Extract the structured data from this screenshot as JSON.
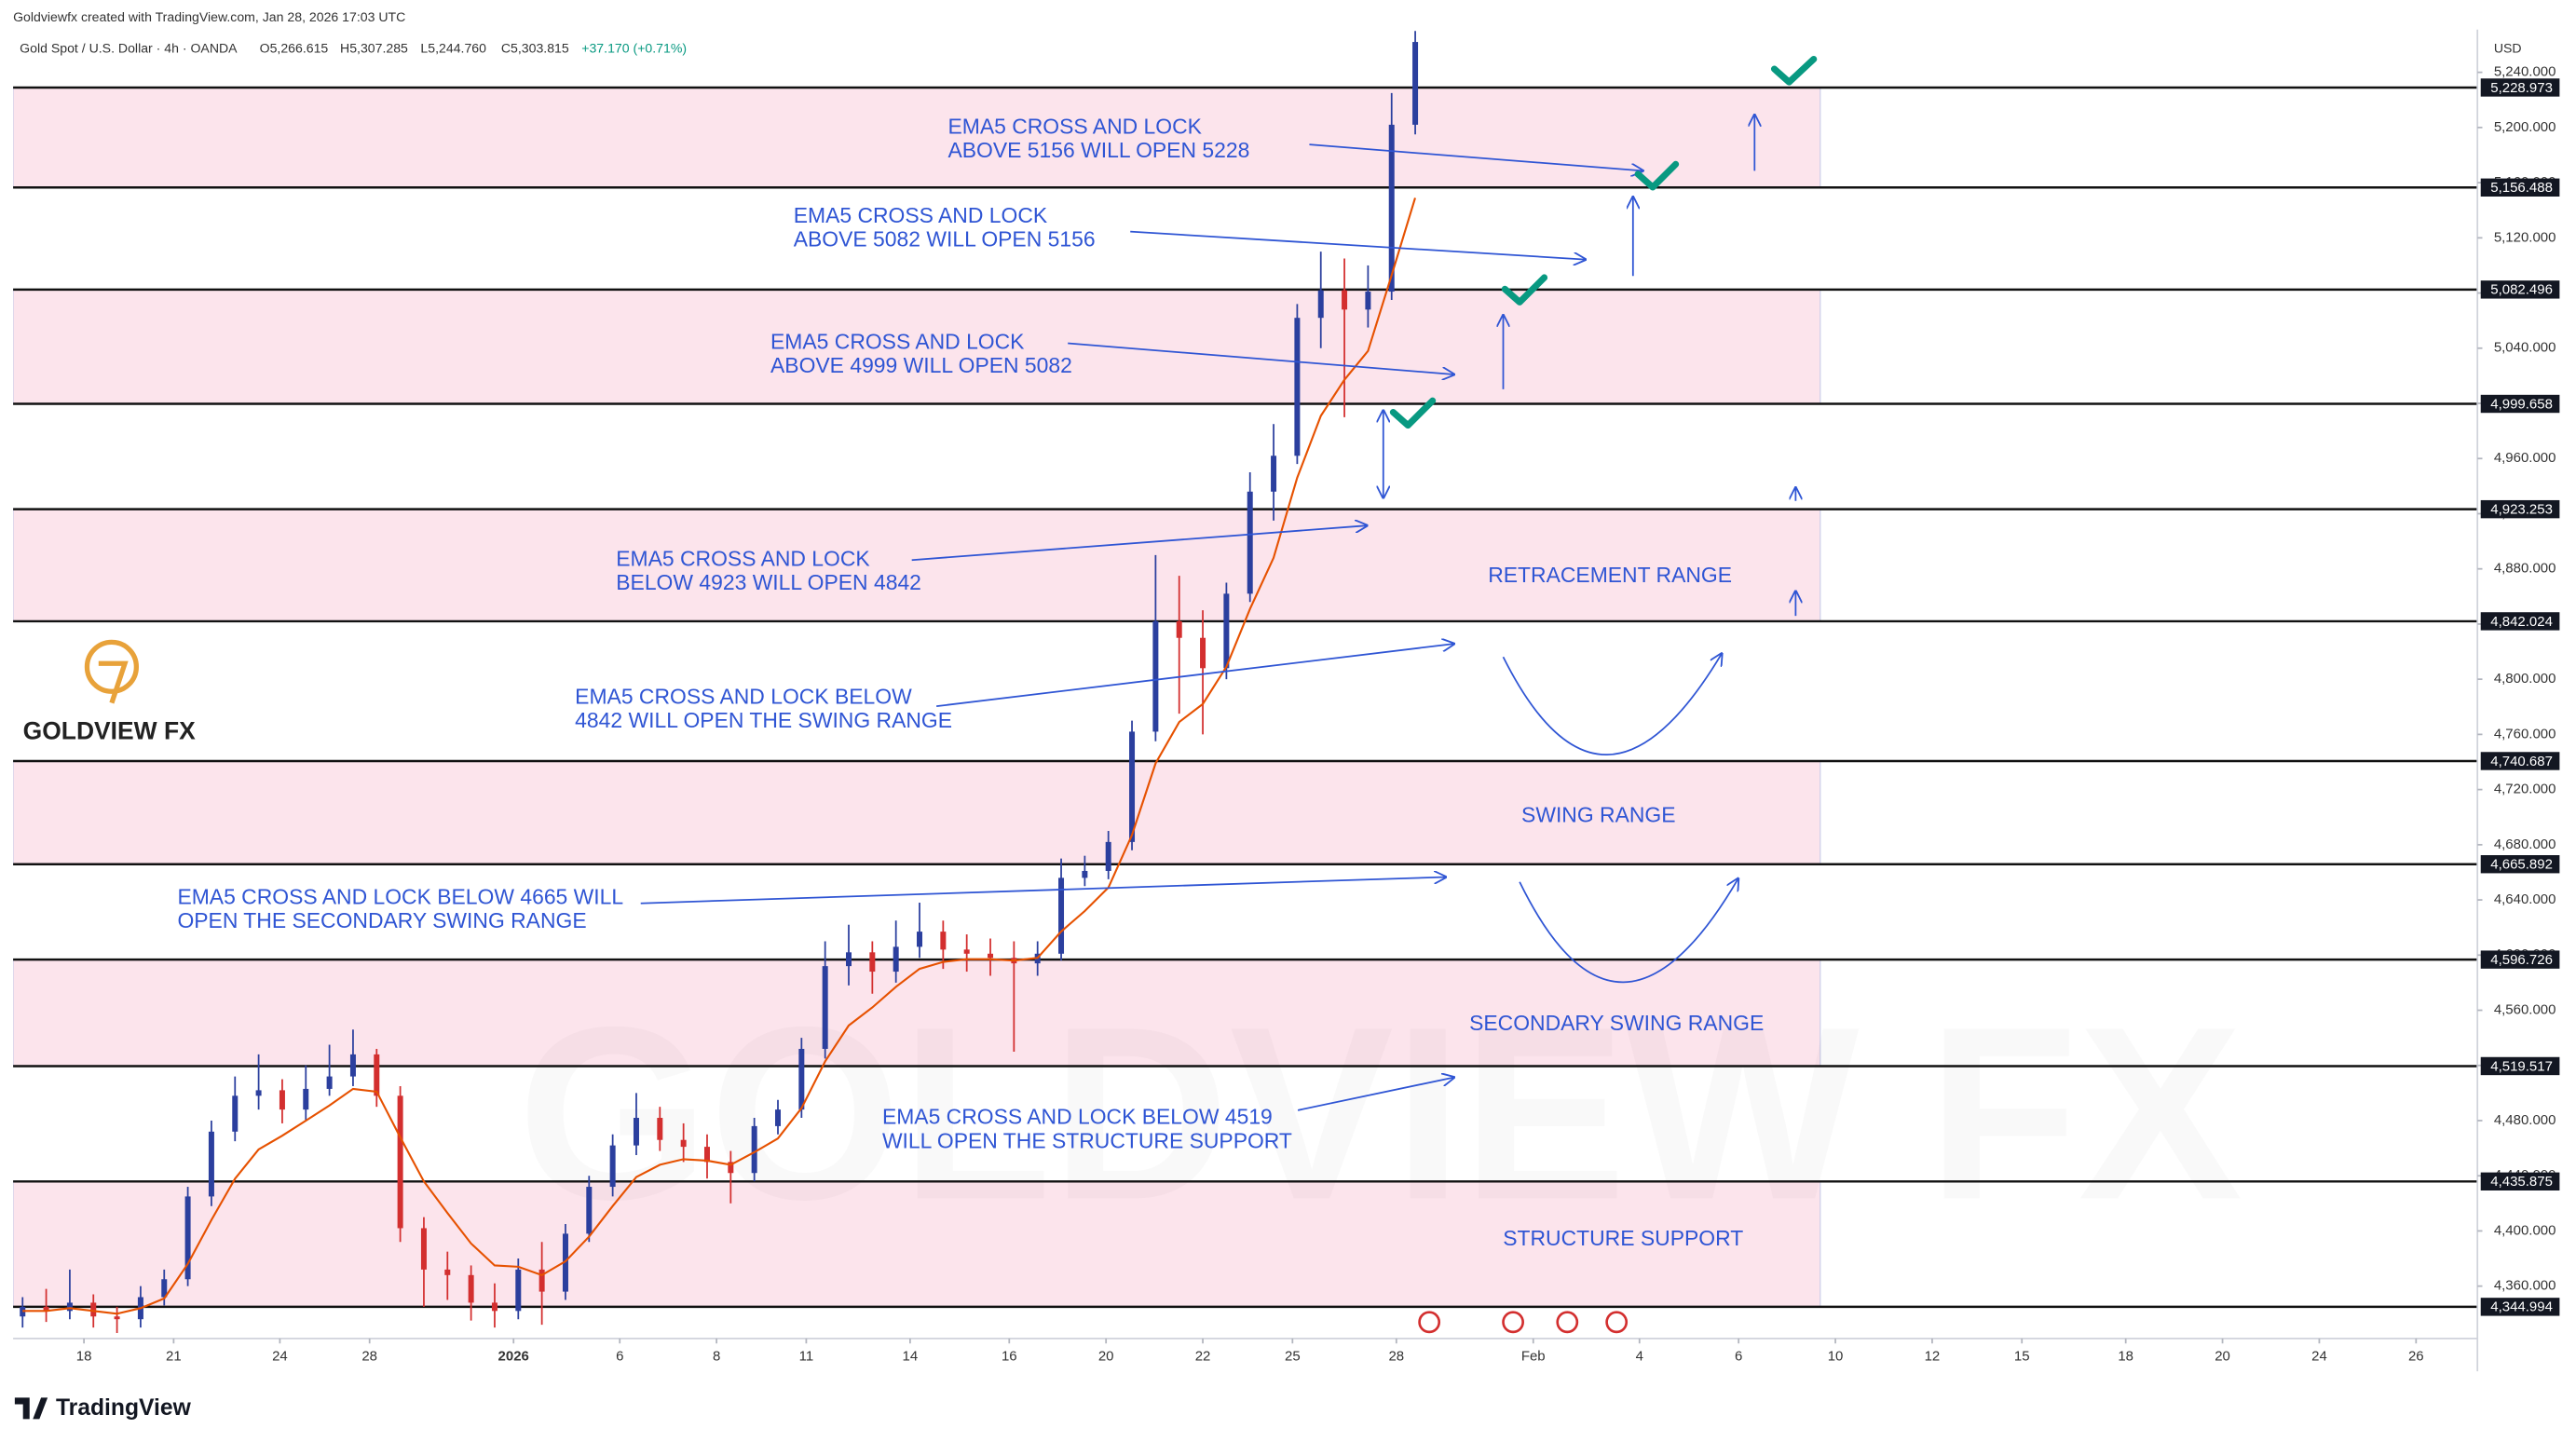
{
  "chart_data": {
    "type": "candlestick",
    "credit": "Goldviewfx created with TradingView.com, Jan 28, 2026 17:03 UTC",
    "title": "Gold Spot / U.S. Dollar · 4h · OANDA",
    "ohlc_header": [
      "O5,266.615",
      "H5,307.285",
      "L5,244.760",
      "C5,303.815",
      "+37.170 (+0.71%)"
    ],
    "currency": "USD",
    "brand": "GOLDVIEW FX",
    "watermark": "GOLDVIEW FX",
    "footer": "TradingView",
    "up_color": "#2b3f9e",
    "down_color": "#d32f2f",
    "x": [
      0,
      1,
      2,
      3,
      4,
      5,
      6,
      7,
      8,
      9,
      10,
      11,
      12,
      13,
      14,
      15,
      16,
      17,
      18,
      19,
      20,
      21,
      22,
      23,
      24,
      25,
      26,
      27,
      28,
      29,
      30,
      31,
      32,
      33,
      34,
      35,
      36,
      37,
      38,
      39,
      40,
      41,
      42,
      43,
      44,
      45,
      46,
      47,
      48,
      49,
      50,
      51,
      52,
      53,
      54,
      55,
      56,
      57,
      58,
      59
    ],
    "open": [
      4338,
      4345,
      4342,
      4348,
      4338,
      4336,
      4352,
      4365,
      4425,
      4472,
      4498,
      4502,
      4488,
      4503,
      4512,
      4528,
      4498,
      4402,
      4372,
      4368,
      4348,
      4342,
      4372,
      4356,
      4398,
      4432,
      4462,
      4482,
      4466,
      4461,
      4450,
      4442,
      4476,
      4488,
      4532,
      4592,
      4602,
      4588,
      4606,
      4617,
      4604,
      4601,
      4598,
      4594,
      4601,
      4656,
      4661,
      4682,
      4762,
      4842,
      4830,
      4808,
      4862,
      4936,
      4962,
      5062,
      5082,
      5068,
      5081,
      5202
    ],
    "high": [
      4352,
      4358,
      4372,
      4354,
      4345,
      4360,
      4372,
      4432,
      4480,
      4512,
      4528,
      4510,
      4520,
      4535,
      4546,
      4532,
      4505,
      4410,
      4385,
      4375,
      4362,
      4380,
      4392,
      4405,
      4440,
      4470,
      4500,
      4490,
      4478,
      4470,
      4458,
      4482,
      4495,
      4540,
      4610,
      4622,
      4610,
      4625,
      4638,
      4625,
      4615,
      4612,
      4610,
      4610,
      4670,
      4672,
      4690,
      4770,
      4890,
      4875,
      4850,
      4870,
      4950,
      4985,
      5072,
      5110,
      5105,
      5100,
      5225,
      5270
    ],
    "low": [
      4330,
      4334,
      4336,
      4330,
      4326,
      4330,
      4346,
      4360,
      4418,
      4465,
      4488,
      4478,
      4480,
      4498,
      4505,
      4490,
      4392,
      4345,
      4350,
      4335,
      4330,
      4336,
      4332,
      4350,
      4392,
      4425,
      4455,
      4458,
      4450,
      4438,
      4420,
      4436,
      4470,
      4482,
      4525,
      4578,
      4572,
      4580,
      4598,
      4590,
      4588,
      4585,
      4530,
      4585,
      4596,
      4650,
      4655,
      4676,
      4755,
      4775,
      4760,
      4800,
      4856,
      4915,
      4956,
      5040,
      4990,
      5055,
      5075,
      5195
    ],
    "close": [
      4345,
      4342,
      4348,
      4338,
      4336,
      4352,
      4365,
      4425,
      4472,
      4498,
      4502,
      4488,
      4503,
      4512,
      4528,
      4498,
      4402,
      4372,
      4368,
      4348,
      4342,
      4372,
      4356,
      4398,
      4432,
      4462,
      4482,
      4466,
      4461,
      4450,
      4442,
      4476,
      4488,
      4532,
      4592,
      4602,
      4588,
      4606,
      4617,
      4604,
      4601,
      4598,
      4594,
      4601,
      4656,
      4661,
      4682,
      4762,
      4842,
      4830,
      4808,
      4862,
      4936,
      4962,
      5062,
      5082,
      5068,
      5081,
      5202,
      5262
    ],
    "ema": {
      "color": "#e65100",
      "values": [
        4342,
        4342,
        4344,
        4342,
        4340,
        4344,
        4351,
        4376,
        4408,
        4438,
        4459,
        4469,
        4480,
        4491,
        4503,
        4501,
        4468,
        4436,
        4413,
        4391,
        4375,
        4374,
        4368,
        4378,
        4396,
        4418,
        4439,
        4448,
        4452,
        4451,
        4448,
        4457,
        4467,
        4489,
        4523,
        4549,
        4562,
        4577,
        4590,
        4595,
        4597,
        4597,
        4596,
        4598,
        4617,
        4632,
        4649,
        4687,
        4739,
        4769,
        4782,
        4809,
        4851,
        4888,
        4946,
        4991,
        5017,
        5038,
        5093,
        5149
      ]
    },
    "levels": [
      {
        "value": 5228.973,
        "label": "5,228.973"
      },
      {
        "value": 5156.488,
        "label": "5,156.488"
      },
      {
        "value": 5082.496,
        "label": "5,082.496"
      },
      {
        "value": 4999.658,
        "label": "4,999.658"
      },
      {
        "value": 4923.253,
        "label": "4,923.253"
      },
      {
        "value": 4842.024,
        "label": "4,842.024"
      },
      {
        "value": 4740.687,
        "label": "4,740.687"
      },
      {
        "value": 4665.892,
        "label": "4,665.892"
      },
      {
        "value": 4596.726,
        "label": "4,596.726"
      },
      {
        "value": 4519.517,
        "label": "4,519.517"
      },
      {
        "value": 4435.875,
        "label": "4,435.875"
      },
      {
        "value": 4344.994,
        "label": "4,344.994"
      }
    ],
    "annotations": [
      {
        "lines": [
          "EMA5 CROSS AND LOCK",
          "ABOVE 5156 WILL OPEN 5228"
        ]
      },
      {
        "lines": [
          "EMA5 CROSS AND LOCK",
          "ABOVE 5082 WILL OPEN 5156"
        ]
      },
      {
        "lines": [
          "EMA5 CROSS AND LOCK",
          "ABOVE 4999 WILL OPEN 5082"
        ]
      },
      {
        "lines": [
          "EMA5 CROSS AND LOCK",
          "BELOW 4923 WILL OPEN 4842"
        ]
      },
      {
        "lines": [
          "EMA5 CROSS AND LOCK BELOW",
          "4842 WILL OPEN THE SWING RANGE"
        ]
      },
      {
        "lines": [
          "EMA5 CROSS AND LOCK BELOW 4665 WILL",
          "OPEN THE SECONDARY SWING RANGE"
        ]
      },
      {
        "lines": [
          "EMA5 CROSS AND LOCK BELOW 4519",
          "WILL OPEN THE STRUCTURE SUPPORT"
        ]
      }
    ],
    "range_labels": [
      "RETRACEMENT RANGE",
      "SWING RANGE",
      "SECONDARY SWING RANGE",
      "STRUCTURE SUPPORT"
    ],
    "xlim": [
      -0.4,
      104
    ],
    "ylim": [
      4322,
      5271
    ],
    "grid": false,
    "xticks": [
      {
        "value": 2.6,
        "label": "18"
      },
      {
        "value": 6.4,
        "label": "21"
      },
      {
        "value": 10.9,
        "label": "24"
      },
      {
        "value": 14.7,
        "label": "28"
      },
      {
        "value": 20.8,
        "label": "2026"
      },
      {
        "value": 25.3,
        "label": "6"
      },
      {
        "value": 29.4,
        "label": "8"
      },
      {
        "value": 33.2,
        "label": "11"
      },
      {
        "value": 37.6,
        "label": "14"
      },
      {
        "value": 41.8,
        "label": "16"
      },
      {
        "value": 45.9,
        "label": "20"
      },
      {
        "value": 50.0,
        "label": "22"
      },
      {
        "value": 53.8,
        "label": "25"
      },
      {
        "value": 58.2,
        "label": "28"
      },
      {
        "value": 64.0,
        "label": "Feb"
      },
      {
        "value": 68.5,
        "label": "4"
      },
      {
        "value": 72.7,
        "label": "6"
      },
      {
        "value": 76.8,
        "label": "10"
      },
      {
        "value": 80.9,
        "label": "12"
      },
      {
        "value": 84.7,
        "label": "15"
      },
      {
        "value": 89.1,
        "label": "18"
      },
      {
        "value": 93.2,
        "label": "20"
      },
      {
        "value": 97.3,
        "label": "24"
      },
      {
        "value": 101.4,
        "label": "26"
      }
    ],
    "yticks": [
      {
        "value": 4360,
        "label": "4,360.000"
      },
      {
        "value": 4400,
        "label": "4,400.000"
      },
      {
        "value": 4440,
        "label": "4,440.000"
      },
      {
        "value": 4480,
        "label": "4,480.000"
      },
      {
        "value": 4520,
        "label": "4,520.000"
      },
      {
        "value": 4560,
        "label": "4,560.000"
      },
      {
        "value": 4600,
        "label": "4,600.000"
      },
      {
        "value": 4640,
        "label": "4,640.000"
      },
      {
        "value": 4680,
        "label": "4,680.000"
      },
      {
        "value": 4720,
        "label": "4,720.000"
      },
      {
        "value": 4760,
        "label": "4,760.000"
      },
      {
        "value": 4800,
        "label": "4,800.000"
      },
      {
        "value": 4840,
        "label": "4,840.000"
      },
      {
        "value": 4880,
        "label": "4,880.000"
      },
      {
        "value": 4920,
        "label": "4,920.000"
      },
      {
        "value": 4960,
        "label": "4,960.000"
      },
      {
        "value": 5000,
        "label": "5,000.000"
      },
      {
        "value": 5040,
        "label": "5,040.000"
      },
      {
        "value": 5080,
        "label": "5,080.000"
      },
      {
        "value": 5120,
        "label": "5,120.000"
      },
      {
        "value": 5160,
        "label": "5,160.000"
      },
      {
        "value": 5200,
        "label": "5,200.000"
      },
      {
        "value": 5240,
        "label": "5,240.000"
      }
    ]
  }
}
